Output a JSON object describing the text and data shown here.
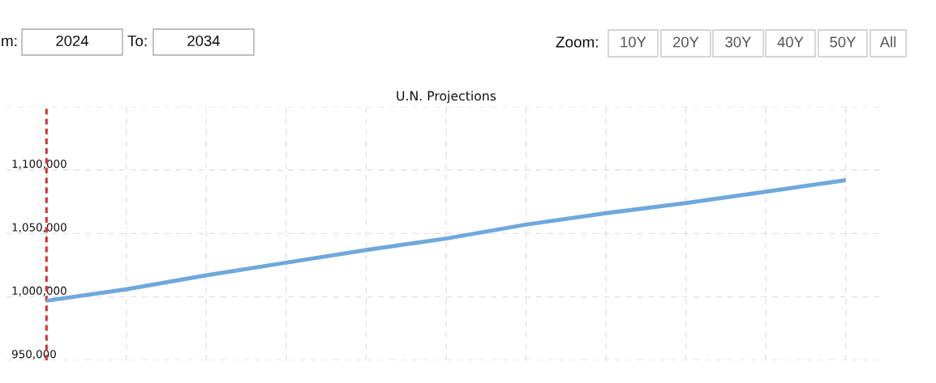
{
  "chart_data": {
    "type": "line",
    "title": "U.N. Projections",
    "categories": [
      null,
      null,
      null,
      null,
      null,
      null,
      null,
      null,
      null,
      null,
      null
    ],
    "series": [
      {
        "color": "#6fa8dc",
        "values": [
          997000,
          1006000,
          1017000,
          1027000,
          1037000,
          1046000,
          1057000,
          1066000,
          1074000,
          1083000,
          1092000
        ]
      }
    ],
    "ylim": [
      950000,
      1150000
    ],
    "yticks": [
      {
        "value": 950000,
        "label": "950,000"
      },
      {
        "value": 1000000,
        "label": "1,000,000"
      },
      {
        "value": 1050000,
        "label": "1,050,000"
      },
      {
        "value": 1100000,
        "label": "1,100,000"
      },
      {
        "value": 1150000,
        "label": null
      }
    ],
    "tick_labels": "y",
    "grid": true,
    "line_style": "solid",
    "annotations": [
      "m:",
      "2024",
      "To:",
      "2034",
      "Zoom:",
      "10Y",
      "20Y",
      "30Y",
      "40Y",
      "50Y",
      "All"
    ]
  }
}
